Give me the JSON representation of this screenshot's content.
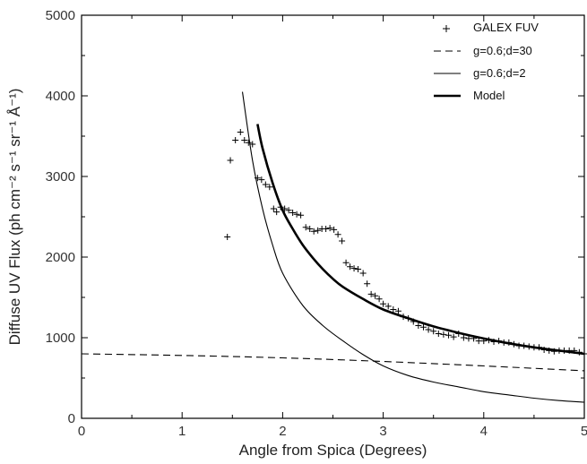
{
  "chart_data": {
    "type": "line",
    "xlabel": "Angle from Spica (Degrees)",
    "ylabel": "Diffuse UV Flux (ph cm⁻² s⁻¹ sr⁻¹ Å⁻¹)",
    "xlim": [
      0,
      5
    ],
    "ylim": [
      0,
      5000
    ],
    "x_ticks": [
      0,
      1,
      2,
      3,
      4,
      5
    ],
    "y_ticks": [
      0,
      1000,
      2000,
      3000,
      4000,
      5000
    ],
    "grid": false,
    "legend_position": "top-right",
    "legend": [
      {
        "label": "GALEX FUV",
        "marker": "plus"
      },
      {
        "label": "g=0.6;d=30",
        "style": "dashed"
      },
      {
        "label": "g=0.6;d=2",
        "style": "thin"
      },
      {
        "label": "Model",
        "style": "thick"
      }
    ],
    "series": [
      {
        "name": "GALEX FUV",
        "style": "plus",
        "x": [
          1.45,
          1.48,
          1.53,
          1.58,
          1.62,
          1.66,
          1.7,
          1.75,
          1.79,
          1.83,
          1.87,
          1.91,
          1.94,
          1.98,
          2.02,
          2.06,
          2.1,
          2.14,
          2.18,
          2.23,
          2.27,
          2.31,
          2.35,
          2.39,
          2.43,
          2.47,
          2.51,
          2.55,
          2.59,
          2.63,
          2.67,
          2.71,
          2.75,
          2.8,
          2.84,
          2.88,
          2.92,
          2.96,
          3.0,
          3.05,
          3.1,
          3.15,
          3.2,
          3.25,
          3.3,
          3.35,
          3.4,
          3.45,
          3.5,
          3.55,
          3.6,
          3.65,
          3.7,
          3.75,
          3.8,
          3.85,
          3.9,
          3.95,
          4.0,
          4.05,
          4.1,
          4.15,
          4.2,
          4.25,
          4.3,
          4.35,
          4.4,
          4.45,
          4.5,
          4.55,
          4.6,
          4.65,
          4.7,
          4.75,
          4.8,
          4.85,
          4.9,
          4.95,
          5.0
        ],
        "values": [
          2250,
          3200,
          3450,
          3550,
          3450,
          3420,
          3400,
          2980,
          2960,
          2900,
          2870,
          2600,
          2560,
          2620,
          2600,
          2580,
          2550,
          2530,
          2520,
          2370,
          2350,
          2320,
          2330,
          2350,
          2350,
          2360,
          2340,
          2280,
          2200,
          1930,
          1880,
          1860,
          1850,
          1800,
          1670,
          1540,
          1520,
          1480,
          1420,
          1390,
          1350,
          1330,
          1260,
          1240,
          1200,
          1150,
          1130,
          1100,
          1080,
          1050,
          1040,
          1030,
          1010,
          1050,
          1000,
          990,
          990,
          960,
          960,
          970,
          950,
          960,
          940,
          940,
          920,
          900,
          900,
          890,
          880,
          880,
          850,
          840,
          830,
          840,
          840,
          840,
          840,
          820,
          800
        ]
      },
      {
        "name": "g=0.6;d=30",
        "style": "dashed",
        "x": [
          0,
          1,
          2,
          3,
          4,
          5
        ],
        "values": [
          800,
          780,
          750,
          705,
          650,
          590
        ]
      },
      {
        "name": "g=0.6;d=2",
        "style": "thin",
        "x": [
          1.6,
          1.7,
          1.8,
          1.9,
          2.0,
          2.2,
          2.4,
          2.6,
          2.8,
          3.0,
          3.25,
          3.5,
          3.75,
          4.0,
          4.25,
          4.5,
          4.75,
          5.0
        ],
        "values": [
          4050,
          3200,
          2600,
          2150,
          1800,
          1400,
          1150,
          960,
          790,
          650,
          530,
          450,
          390,
          330,
          290,
          250,
          220,
          200
        ]
      },
      {
        "name": "Model",
        "style": "thick",
        "x": [
          1.75,
          1.8,
          1.9,
          2.0,
          2.1,
          2.2,
          2.3,
          2.4,
          2.5,
          2.6,
          2.8,
          3.0,
          3.25,
          3.5,
          3.75,
          4.0,
          4.25,
          4.5,
          4.75,
          5.0
        ],
        "values": [
          3650,
          3350,
          2920,
          2580,
          2350,
          2150,
          1990,
          1850,
          1730,
          1630,
          1480,
          1350,
          1240,
          1140,
          1060,
          990,
          930,
          880,
          840,
          800
        ]
      }
    ]
  }
}
